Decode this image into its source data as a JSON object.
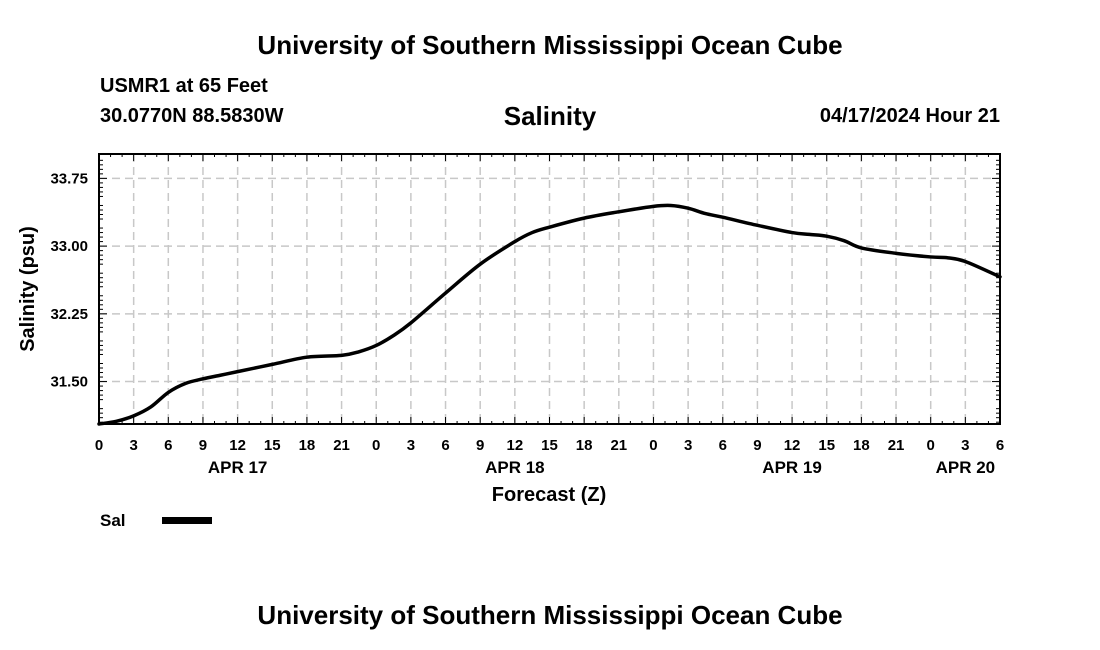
{
  "header": {
    "title": "University of Southern Mississippi Ocean Cube",
    "station": "USMR1 at 65 Feet",
    "coords": "30.0770N  88.5830W",
    "variable": "Salinity",
    "datetime": "04/17/2024 Hour 21"
  },
  "footer": {
    "title": "University of Southern Mississippi Ocean Cube"
  },
  "legend": {
    "label": "Sal"
  },
  "colors": {
    "line": "#000000",
    "grid": "#c8c8c8"
  },
  "chart_data": {
    "type": "line",
    "title": "Salinity",
    "xlabel": "Forecast (Z)",
    "ylabel": "Salinity (psu)",
    "xlim": [
      0,
      78
    ],
    "ylim": [
      31.03,
      34.02
    ],
    "x_ticks": [
      0,
      3,
      6,
      9,
      12,
      15,
      18,
      21,
      24,
      27,
      30,
      33,
      36,
      39,
      42,
      45,
      48,
      51,
      54,
      57,
      60,
      63,
      66,
      69,
      72,
      75,
      78
    ],
    "x_tick_labels": [
      "0",
      "3",
      "6",
      "9",
      "12",
      "15",
      "18",
      "21",
      "0",
      "3",
      "6",
      "9",
      "12",
      "15",
      "18",
      "21",
      "0",
      "3",
      "6",
      "9",
      "12",
      "15",
      "18",
      "21",
      "0",
      "3",
      "6"
    ],
    "date_labels": [
      {
        "x": 12,
        "text": "APR 17"
      },
      {
        "x": 36,
        "text": "APR 18"
      },
      {
        "x": 60,
        "text": "APR 19"
      },
      {
        "x": 75,
        "text": "APR 20"
      }
    ],
    "y_ticks": [
      31.5,
      32.25,
      33.0,
      33.75
    ],
    "y_tick_labels": [
      "31.50",
      "32.25",
      "33.00",
      "33.75"
    ],
    "grid": true,
    "series": [
      {
        "name": "Sal",
        "x": [
          0,
          1.5,
          3,
          4.5,
          6,
          7.5,
          9,
          10.5,
          12,
          15,
          18,
          21,
          22.5,
          24,
          25.5,
          27,
          30,
          33,
          36,
          37.5,
          39,
          42,
          45,
          48,
          49.5,
          51,
          52.5,
          54,
          57,
          60,
          61.5,
          63,
          64.5,
          66,
          69,
          72,
          73.5,
          75,
          78
        ],
        "y": [
          31.03,
          31.06,
          31.12,
          31.22,
          31.38,
          31.48,
          31.53,
          31.57,
          31.61,
          31.69,
          31.77,
          31.79,
          31.83,
          31.9,
          32.01,
          32.15,
          32.48,
          32.8,
          33.05,
          33.15,
          33.21,
          33.31,
          33.38,
          33.44,
          33.45,
          33.42,
          33.36,
          33.32,
          33.23,
          33.15,
          33.13,
          33.11,
          33.06,
          32.98,
          32.92,
          32.88,
          32.87,
          32.83,
          32.66
        ]
      }
    ]
  }
}
